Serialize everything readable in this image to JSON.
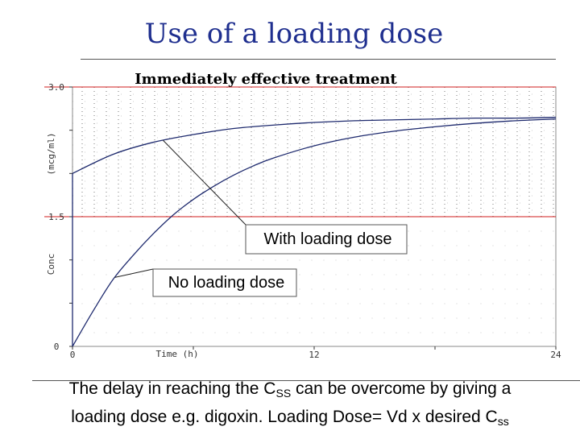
{
  "slide": {
    "title": "Use of a loading dose",
    "caption_line1_a": "The delay in reaching the C",
    "caption_line1_sub": "SS",
    "caption_line1_b": " can be overcome by giving a",
    "caption_line2_a": "loading dose e.g. digoxin. Loading Dose= Vd x desired C",
    "caption_line2_sub": "ss"
  },
  "chart_data": {
    "type": "line",
    "title": "Immediately effective treatment",
    "xlabel": "Time (h)",
    "ylabel": "(mcg/ml)  Conc",
    "ylabel_top": "(mcg/ml)",
    "ylabel_bottom": "Conc",
    "xlim": [
      0,
      24
    ],
    "ylim": [
      0,
      3.0
    ],
    "x_ticks": [
      0,
      12,
      24
    ],
    "x_tick_labels": [
      "0",
      "12",
      "24"
    ],
    "y_ticks": [
      0,
      1.5,
      3.0
    ],
    "y_tick_labels": [
      "0",
      "1.5",
      "3.0"
    ],
    "therapeutic_window": [
      1.5,
      3.0
    ],
    "threshold_color": "#d21e1e",
    "curve_color": "#1e2a6e",
    "grid": "dotted",
    "series": [
      {
        "name": "With loading dose",
        "x": [
          0,
          2,
          4,
          6,
          8,
          10,
          12,
          14,
          16,
          18,
          20,
          22,
          24
        ],
        "values": [
          2.0,
          2.22,
          2.36,
          2.45,
          2.52,
          2.56,
          2.59,
          2.61,
          2.62,
          2.63,
          2.64,
          2.64,
          2.65
        ]
      },
      {
        "name": "No loading dose",
        "x": [
          0,
          1,
          2,
          3,
          4,
          5,
          6,
          7,
          8,
          9,
          10,
          12,
          14,
          16,
          18,
          20,
          22,
          24
        ],
        "values": [
          0,
          0.4,
          0.77,
          1.05,
          1.3,
          1.52,
          1.7,
          1.85,
          1.98,
          2.09,
          2.18,
          2.32,
          2.42,
          2.49,
          2.54,
          2.58,
          2.61,
          2.63
        ]
      }
    ],
    "annotations": [
      {
        "text": "With loading dose",
        "series": 0,
        "point_x": 4.5
      },
      {
        "text": "No loading dose",
        "series": 1,
        "point_x": 2.1
      }
    ]
  }
}
